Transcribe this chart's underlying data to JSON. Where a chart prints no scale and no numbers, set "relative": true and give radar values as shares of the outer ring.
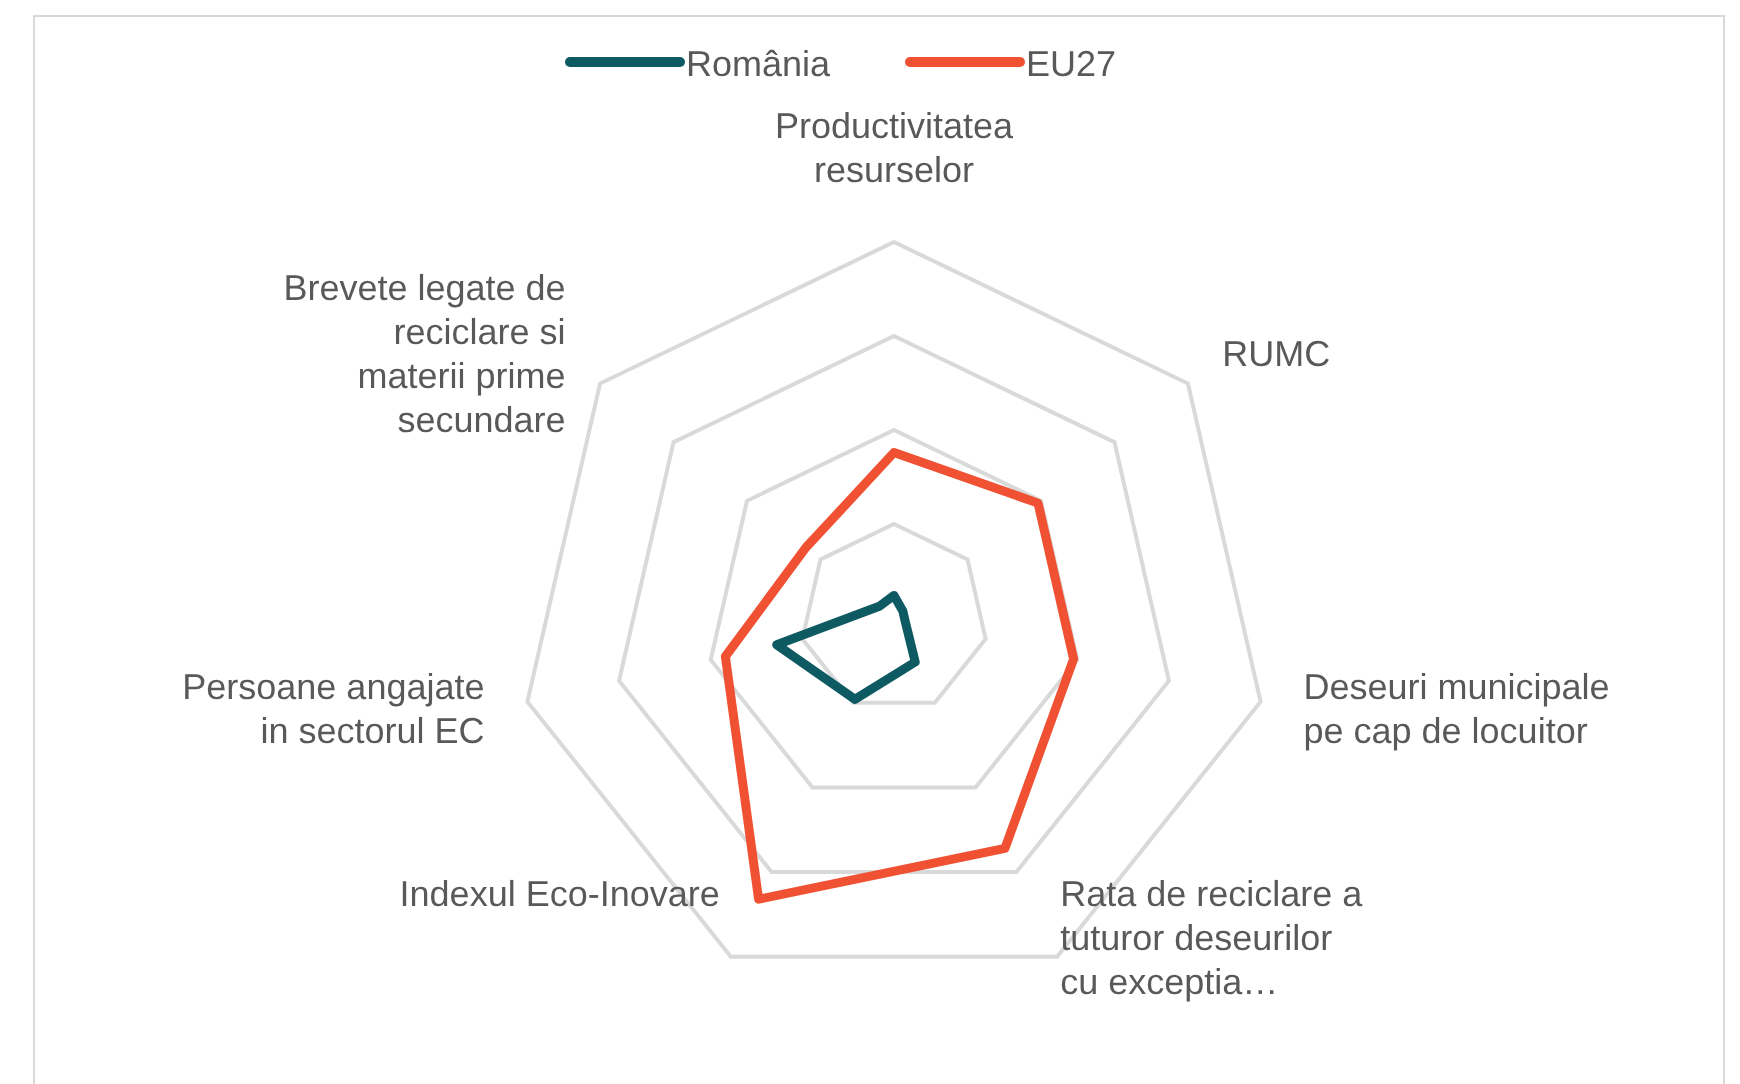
{
  "chart_data": {
    "type": "radar",
    "relative": true,
    "legend": "top",
    "grid": true,
    "categories": [
      "Productivitatea resurselor",
      "RUMC",
      "Deseuri municipale pe cap de locuitor",
      "Rata de reciclare a tuturor deseurilor cu exceptia…",
      "Indexul Eco-Inovare",
      "Persoane angajate in sectorul EC",
      "Brevete legate de reciclare si materii prime secundare"
    ],
    "series": [
      {
        "name": "România",
        "color": "#0e5a63",
        "values": [
          0.06,
          0.03,
          0.03,
          0.13,
          0.24,
          0.32,
          0.05
        ]
      },
      {
        "name": "EU27",
        "color": "#f05133",
        "values": [
          0.44,
          0.49,
          0.49,
          0.68,
          0.83,
          0.46,
          0.3
        ]
      }
    ]
  }
}
